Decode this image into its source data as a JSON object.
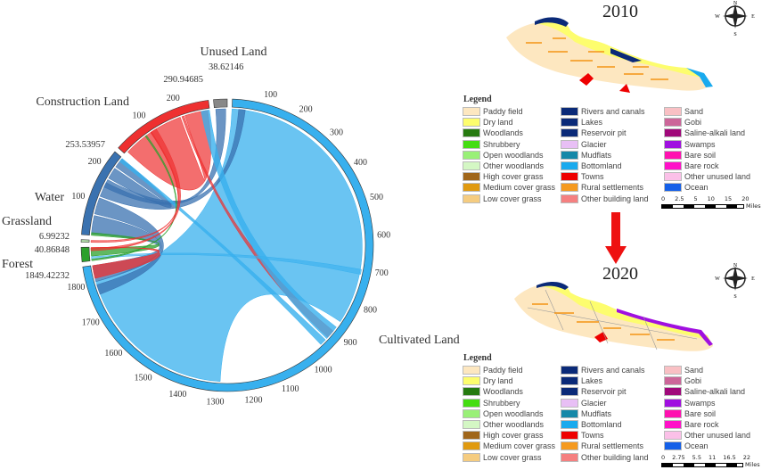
{
  "chart_data": {
    "type": "chord",
    "categories": [
      "Cultivated Land",
      "Forest",
      "Grassland",
      "Water",
      "Construction Land",
      "Unused Land"
    ],
    "totals": [
      1849.42232,
      40.86848,
      6.99232,
      253.53957,
      290.94685,
      38.62146
    ],
    "total_labels": [
      "1849.42232",
      "40.86848",
      "6.99232",
      "253.53957",
      "290.94685",
      "38.62146"
    ],
    "colors": [
      "#38b0ee",
      "#2ca02c",
      "#b8e6b0",
      "#3a72b0",
      "#ee3030",
      "#888888"
    ],
    "ticks": {
      "Cultivated Land": [
        "100",
        "200",
        "300",
        "400",
        "500",
        "600",
        "700",
        "800",
        "900",
        "1000",
        "1100",
        "1200",
        "1300",
        "1400",
        "1500",
        "1600",
        "1700",
        "1800"
      ],
      "Water": [
        "100",
        "200"
      ],
      "Construction Land": [
        "100",
        "200"
      ]
    }
  },
  "maps": [
    {
      "year": "2010",
      "scale_labels": [
        "0",
        "2.5",
        "5",
        "10",
        "15",
        "20"
      ],
      "scale_unit": "Miles"
    },
    {
      "year": "2020",
      "scale_labels": [
        "0",
        "2.75",
        "5.5",
        "11",
        "16.5",
        "22"
      ],
      "scale_unit": "Miles"
    }
  ],
  "compass": {
    "n": "N",
    "s": "S",
    "e": "E",
    "w": "W"
  },
  "legend": {
    "title": "Legend",
    "columns": [
      [
        {
          "label": "Paddy field",
          "color": "#fde7c0"
        },
        {
          "label": "Dry land",
          "color": "#fdfd6e"
        },
        {
          "label": "Woodlands",
          "color": "#267a10"
        },
        {
          "label": "Shrubbery",
          "color": "#44dd11"
        },
        {
          "label": "Open woodlands",
          "color": "#99f077"
        },
        {
          "label": "Other woodlands",
          "color": "#d4f7c4"
        },
        {
          "label": "High cover grass",
          "color": "#a0661a"
        },
        {
          "label": "Medium cover grass",
          "color": "#e09a10"
        },
        {
          "label": "Low cover grass",
          "color": "#f5cc80"
        }
      ],
      [
        {
          "label": "Rivers and canals",
          "color": "#0a2a78"
        },
        {
          "label": "Lakes",
          "color": "#0a2a78"
        },
        {
          "label": "Reservoir pit",
          "color": "#0a2a78"
        },
        {
          "label": "Glacier",
          "color": "#e8bff5"
        },
        {
          "label": "Mudflats",
          "color": "#1588a8"
        },
        {
          "label": "Bottomland",
          "color": "#19aaee"
        },
        {
          "label": "Towns",
          "color": "#ee0000"
        },
        {
          "label": "Rural settlements",
          "color": "#f59a20"
        },
        {
          "label": "Other building land",
          "color": "#f58080"
        }
      ],
      [
        {
          "label": "Sand",
          "color": "#f9c0c4"
        },
        {
          "label": "Gobi",
          "color": "#cc6699"
        },
        {
          "label": "Saline-alkali land",
          "color": "#a0087a"
        },
        {
          "label": "Swamps",
          "color": "#a010e0"
        },
        {
          "label": "Bare soil",
          "color": "#ff10b0"
        },
        {
          "label": "Bare rock",
          "color": "#ff10c8"
        },
        {
          "label": "Other unused land",
          "color": "#fbc0e8"
        },
        {
          "label": "Ocean",
          "color": "#1560e8"
        }
      ]
    ]
  },
  "arrow_color": "#ee1111"
}
